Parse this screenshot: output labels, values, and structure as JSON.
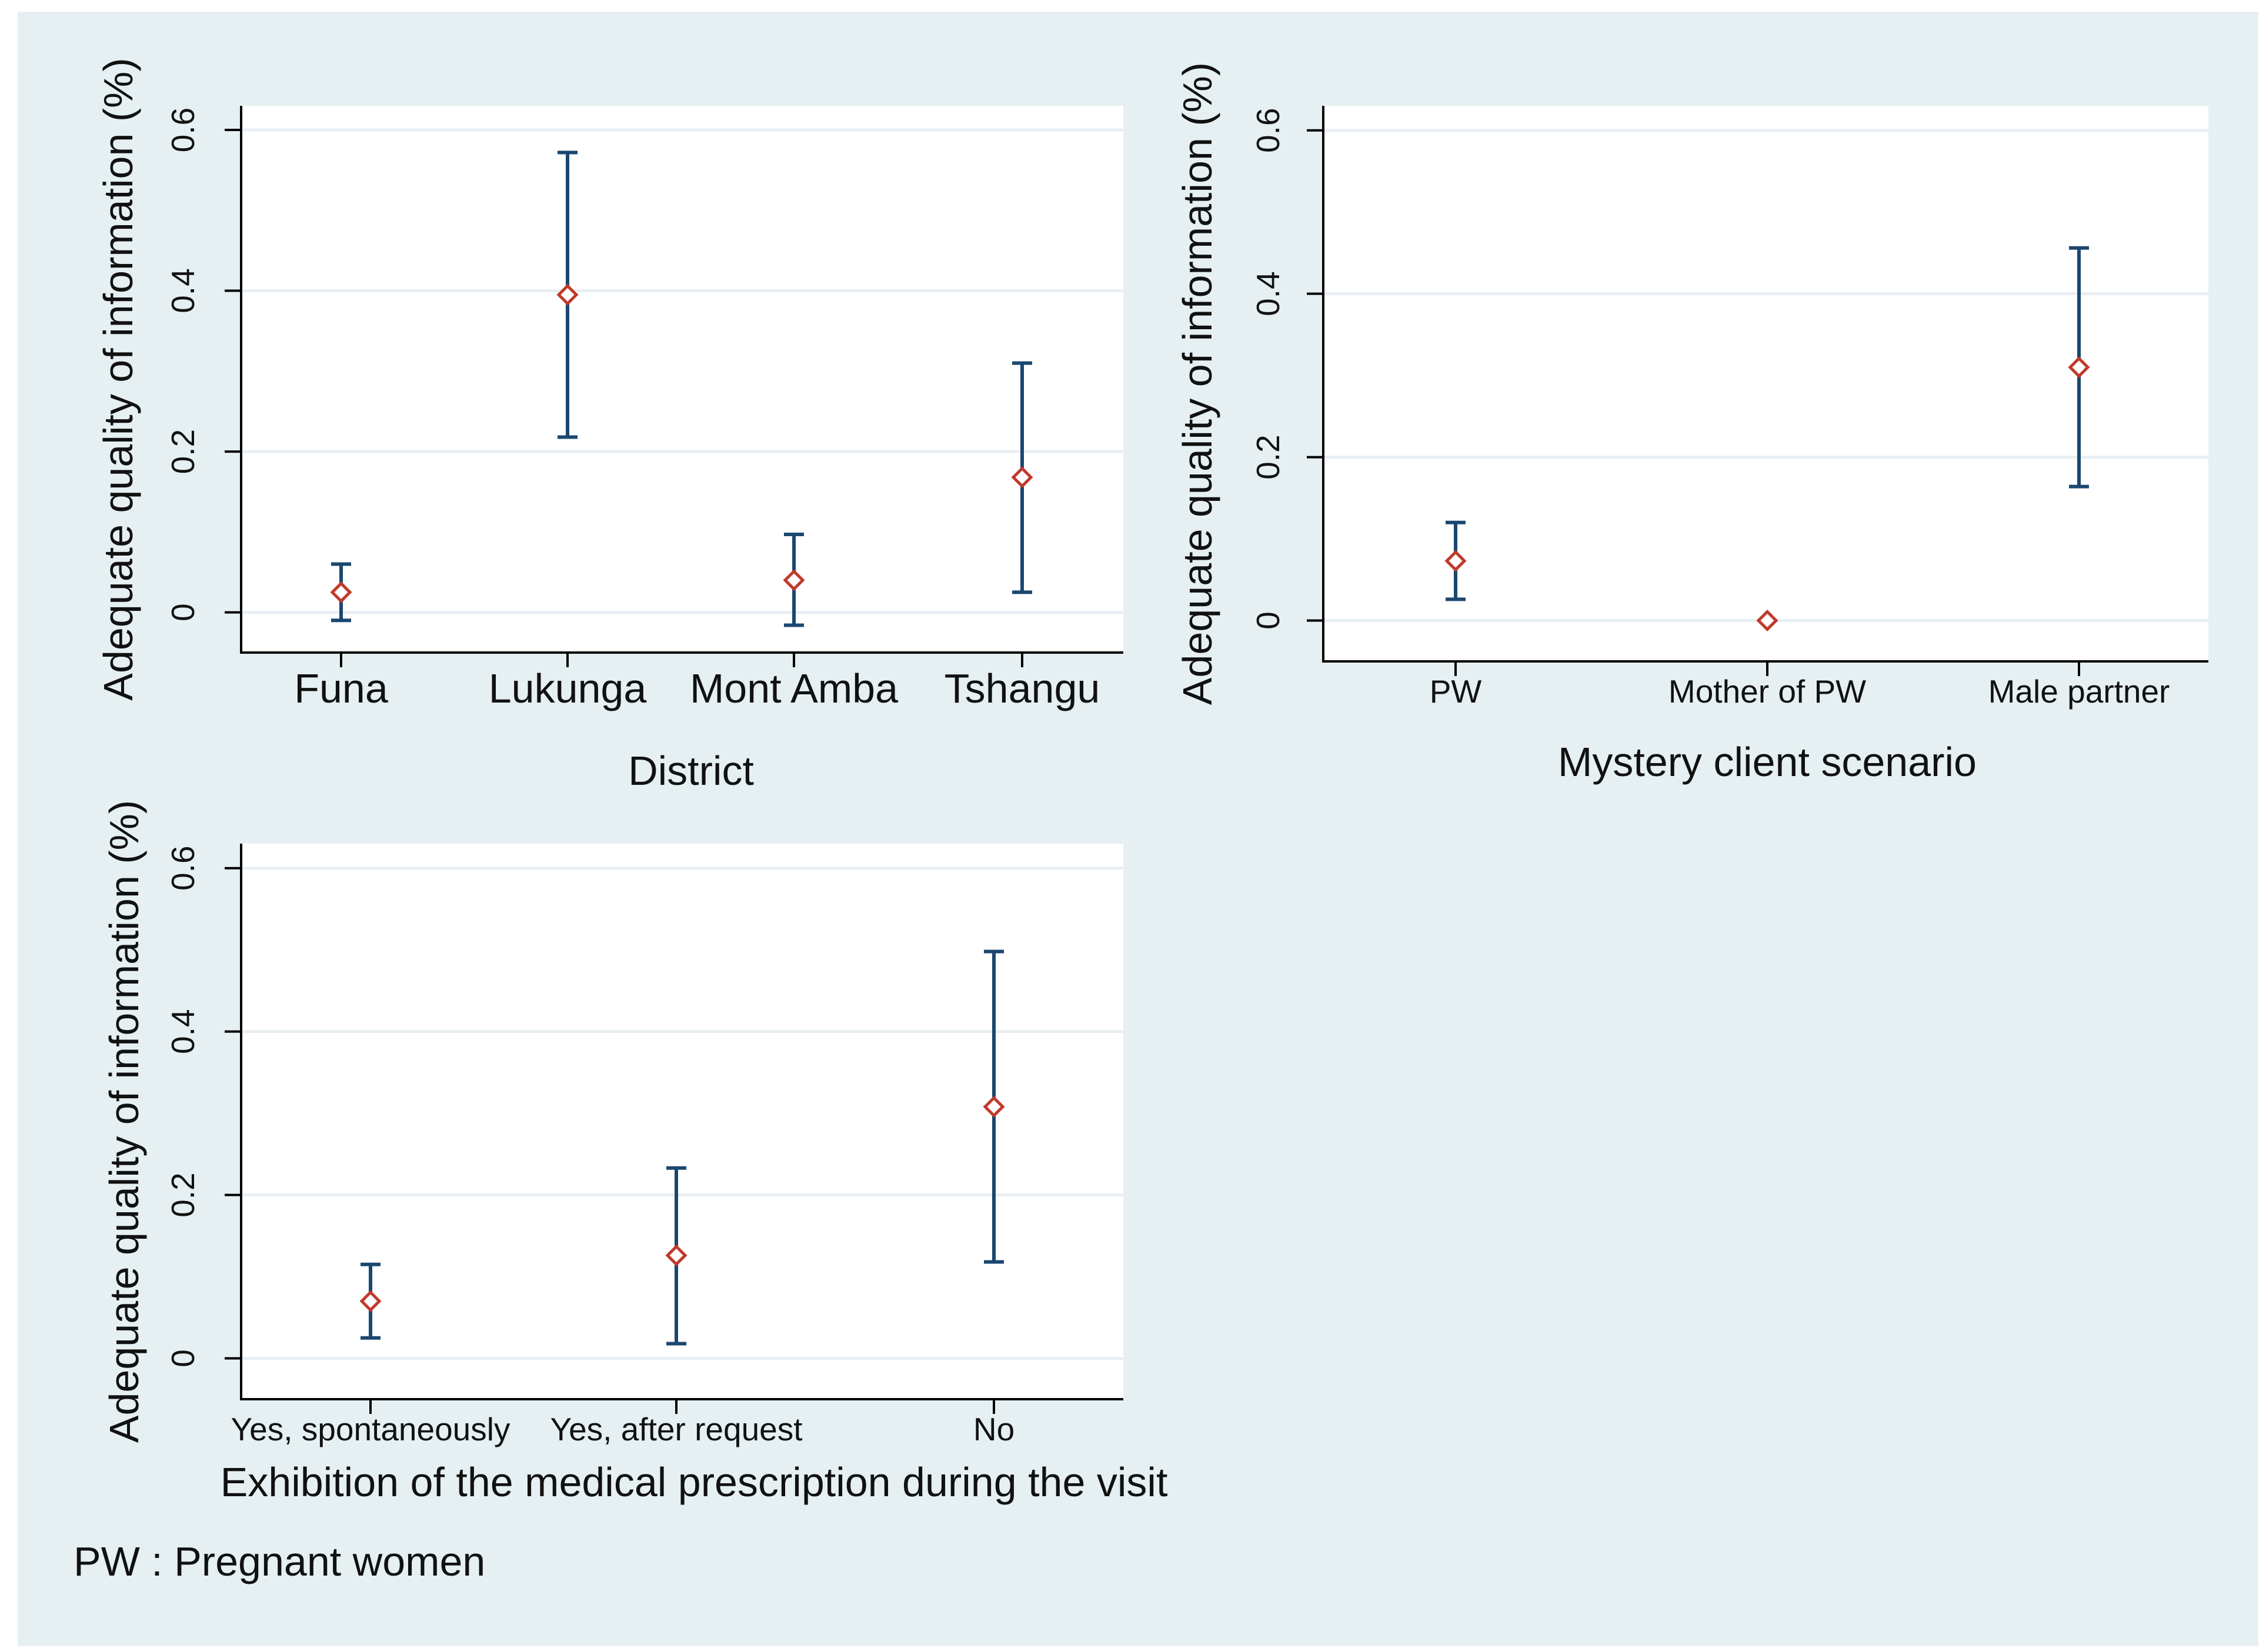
{
  "colors": {
    "background": "#e6f0f2",
    "plot_background": "#ffffff",
    "gridline": "#e8eef2",
    "axis": "#000000",
    "error_bar": "#1a476f",
    "marker": "#c0392b"
  },
  "footnote": "PW : Pregnant women",
  "chart_data": [
    {
      "type": "scatter",
      "subtype": "point-estimate-with-confidence-interval",
      "title": "",
      "xlabel": "District",
      "ylabel": "Adequate quality of information (%)",
      "ylim": [
        -0.05,
        0.63
      ],
      "yticks": [
        0,
        0.2,
        0.4,
        0.6
      ],
      "ytick_labels": [
        "0",
        "0.2",
        "0.4",
        "0.6"
      ],
      "grid": true,
      "categories": [
        "Funa",
        "Lukunga",
        "Mont Amba",
        "Tshangu"
      ],
      "values": [
        0.025,
        0.395,
        0.04,
        0.168
      ],
      "ci_low": [
        -0.01,
        0.218,
        -0.016,
        0.025
      ],
      "ci_high": [
        0.06,
        0.572,
        0.097,
        0.31
      ]
    },
    {
      "type": "scatter",
      "subtype": "point-estimate-with-confidence-interval",
      "title": "",
      "xlabel": "Mystery client scenario",
      "ylabel": "Adequate quality of information (%)",
      "ylim": [
        -0.05,
        0.63
      ],
      "yticks": [
        0,
        0.2,
        0.4,
        0.6
      ],
      "ytick_labels": [
        "0",
        "0.2",
        "0.4",
        "0.6"
      ],
      "grid": true,
      "categories": [
        "PW",
        "Mother of PW",
        "Male partner"
      ],
      "values": [
        0.073,
        0.0,
        0.31
      ],
      "ci_low": [
        0.026,
        0.0,
        0.164
      ],
      "ci_high": [
        0.12,
        0.0,
        0.456
      ]
    },
    {
      "type": "scatter",
      "subtype": "point-estimate-with-confidence-interval",
      "title": "",
      "xlabel": "Exhibition of the medical prescription during the visit",
      "ylabel": "Adequate quality of information (%)",
      "ylim": [
        -0.05,
        0.63
      ],
      "yticks": [
        0,
        0.2,
        0.4,
        0.6
      ],
      "ytick_labels": [
        "0",
        "0.2",
        "0.4",
        "0.6"
      ],
      "grid": true,
      "categories": [
        "Yes, spontaneously",
        "Yes, after request",
        "No"
      ],
      "values": [
        0.07,
        0.126,
        0.308
      ],
      "ci_low": [
        0.025,
        0.018,
        0.118
      ],
      "ci_high": [
        0.115,
        0.233,
        0.498
      ]
    }
  ]
}
